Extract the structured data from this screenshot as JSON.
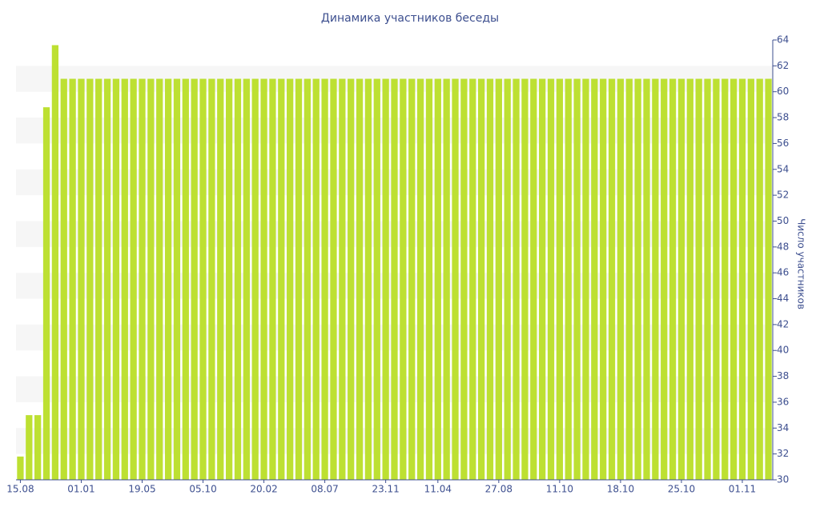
{
  "chart_data": {
    "type": "bar",
    "title": "Динамика участников беседы",
    "y_axis_label": "Число участников",
    "color": "#bde032",
    "grid": true,
    "y_axis_side": "right",
    "categories": [
      "15.08",
      null,
      null,
      null,
      null,
      null,
      null,
      "01.01",
      null,
      null,
      null,
      null,
      null,
      null,
      "19.05",
      null,
      null,
      null,
      null,
      null,
      null,
      "05.10",
      null,
      null,
      null,
      null,
      null,
      null,
      "20.02",
      null,
      null,
      null,
      null,
      null,
      null,
      "08.07",
      null,
      null,
      null,
      null,
      null,
      null,
      "23.11",
      null,
      null,
      null,
      null,
      null,
      "11.04",
      null,
      null,
      null,
      null,
      null,
      null,
      "27.08",
      null,
      null,
      null,
      null,
      null,
      null,
      "11.10",
      null,
      null,
      null,
      null,
      null,
      null,
      "18.10",
      null,
      null,
      null,
      null,
      null,
      null,
      "25.10",
      null,
      null,
      null,
      null,
      null,
      null,
      "01.11",
      null,
      null,
      null
    ],
    "values": [
      31.8,
      35,
      35,
      58.8,
      63.6,
      61,
      61,
      61,
      61,
      61,
      61,
      61,
      61,
      61,
      61,
      61,
      61,
      61,
      61,
      61,
      61,
      61,
      61,
      61,
      61,
      61,
      61,
      61,
      61,
      61,
      61,
      61,
      61,
      61,
      61,
      61,
      61,
      61,
      61,
      61,
      61,
      61,
      61,
      61,
      61,
      61,
      61,
      61,
      61,
      61,
      61,
      61,
      61,
      61,
      61,
      61,
      61,
      61,
      61,
      61,
      61,
      61,
      61,
      61,
      61,
      61,
      61,
      61,
      61,
      61,
      61,
      61,
      61,
      61,
      61,
      61,
      61,
      61,
      61,
      61,
      61,
      61,
      61,
      61,
      61,
      61,
      61
    ],
    "ylim": [
      30,
      64
    ],
    "yticks": [
      30,
      32,
      34,
      36,
      38,
      40,
      42,
      44,
      46,
      48,
      50,
      52,
      54,
      56,
      58,
      60,
      62,
      64
    ]
  }
}
